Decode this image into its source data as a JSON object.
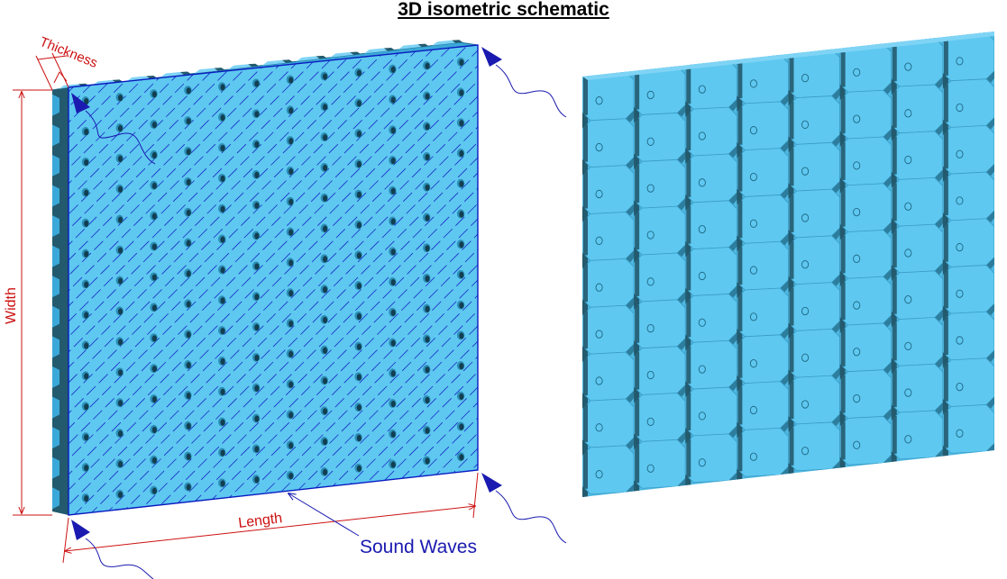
{
  "title": "3D isometric schematic",
  "labels": {
    "thickness": "Thickness",
    "width": "Width",
    "length": "Length",
    "sound_waves": "Sound Waves"
  },
  "colors": {
    "panel_face": "#5ec8f0",
    "panel_dark": "#235a6e",
    "panel_edge": "#3aa8d8",
    "hatch": "#1a2cc8",
    "outline": "#0a1ac0",
    "dimension": "#cc1111",
    "wave": "#1a1ab0",
    "tile_light": "#5ec8f0",
    "tile_dark": "#235a6e"
  },
  "panel_holes": {
    "rows": 14,
    "cols": 12
  },
  "tile_grid": {
    "rows": 9,
    "cols": 8
  }
}
